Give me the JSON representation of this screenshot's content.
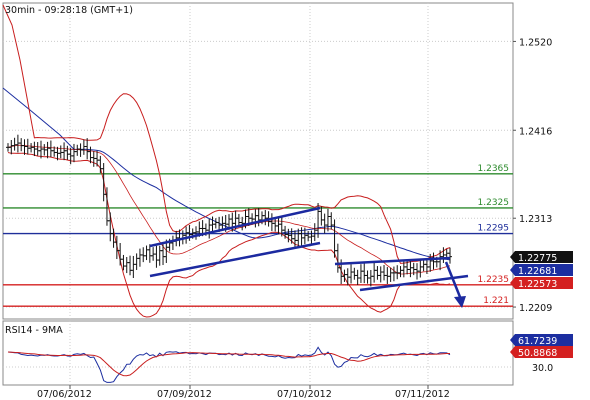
{
  "header": {
    "title": "30min - 09:28:18 (GMT+1)"
  },
  "price_panel": {
    "y_axis_labels": [
      "1.2520",
      "1.2416",
      "1.2313",
      "1.2209"
    ],
    "levels": [
      {
        "value": 1.2365,
        "label": "1.2365",
        "color": "#2e8b2e"
      },
      {
        "value": 1.2325,
        "label": "1.2325",
        "color": "#2e8b2e"
      },
      {
        "value": 1.2295,
        "label": "1.2295",
        "color": "#1f2f9a"
      },
      {
        "value": 1.2235,
        "label": "1.2235",
        "color": "#d42020"
      },
      {
        "value": 1.221,
        "label": "1.221",
        "color": "#d42020"
      }
    ],
    "price_tags": [
      {
        "label": "1.22775",
        "bg": "#111111",
        "fg": "#ffffff"
      },
      {
        "label": "1.22681",
        "bg": "#1c2ea0",
        "fg": "#ffffff"
      },
      {
        "label": "1.22573",
        "bg": "#d42020",
        "fg": "#ffffff"
      }
    ]
  },
  "rsi_panel": {
    "title": "RSI14 - 9MA",
    "y_axis_labels": [
      "30.0"
    ],
    "value_tags": [
      {
        "label": "61.7239",
        "bg": "#1c2ea0",
        "fg": "#ffffff"
      },
      {
        "label": "50.8868",
        "bg": "#d42020",
        "fg": "#ffffff"
      }
    ]
  },
  "x_axis": {
    "labels": [
      "07/06/2012",
      "07/09/2012",
      "07/10/2012",
      "07/11/2012"
    ]
  },
  "colors": {
    "price_bars": "#111111",
    "bollinger": "#c81e1e",
    "moving_average": "#1c2ea0",
    "channel": "#1c2aa0",
    "rsi_line": "#1c2ea0",
    "rsi_ma": "#c81e1e"
  },
  "chart_data": {
    "type": "line",
    "title": "30min - 09:28:18 (GMT+1)",
    "ylim": [
      1.2195,
      1.2565
    ],
    "y_ticks": [
      1.252,
      1.2416,
      1.2313,
      1.2209
    ],
    "x_tick_labels": [
      "07/06/2012",
      "07/09/2012",
      "07/10/2012",
      "07/11/2012"
    ],
    "series": [
      {
        "close": [
          1.2396,
          1.2398,
          1.2399,
          1.2401,
          1.2398,
          1.2397,
          1.2395,
          1.2396,
          1.2394,
          1.2392,
          1.2394,
          1.2393,
          1.2395,
          1.2392,
          1.239,
          1.2389,
          1.239,
          1.2392,
          1.2388,
          1.2386,
          1.2391,
          1.2394,
          1.2393,
          1.2397,
          1.2391,
          1.2384,
          1.2383,
          1.2381,
          1.2371,
          1.2341,
          1.231,
          1.2295,
          1.2285,
          1.2275,
          1.2265,
          1.2257,
          1.2261,
          1.2252,
          1.2259,
          1.2266,
          1.227,
          1.2269,
          1.2276,
          1.2269,
          1.2271,
          1.2264,
          1.2275,
          1.2268,
          1.2279,
          1.2284,
          1.2286,
          1.229,
          1.2289,
          1.2293,
          1.2296,
          1.2294,
          1.2296,
          1.2297,
          1.2301,
          1.2301,
          1.2299,
          1.2305,
          1.2306,
          1.2308,
          1.2305,
          1.2307,
          1.2306,
          1.2312,
          1.2307,
          1.2313,
          1.2308,
          1.2307,
          1.2315,
          1.2313,
          1.2312,
          1.2316,
          1.2311,
          1.2316,
          1.2313,
          1.2309,
          1.2307,
          1.2304,
          1.2306,
          1.2299,
          1.2294,
          1.2293,
          1.2289,
          1.2287,
          1.2295,
          1.229,
          1.2293,
          1.2291,
          1.2292,
          1.2299,
          1.2321,
          1.2311,
          1.2305,
          1.2315,
          1.2305,
          1.2275,
          1.2255,
          1.2245,
          1.2247,
          1.2244,
          1.225,
          1.2246,
          1.2243,
          1.2251,
          1.2246,
          1.2243,
          1.2245,
          1.2252,
          1.2246,
          1.225,
          1.2246,
          1.2245,
          1.2249,
          1.2249,
          1.2249,
          1.2252,
          1.2256,
          1.2253,
          1.2255,
          1.2253,
          1.2251,
          1.2256,
          1.2259,
          1.2256,
          1.2263,
          1.2262,
          1.2262,
          1.2268,
          1.227,
          1.2272,
          1.2268
        ]
      }
    ]
  }
}
